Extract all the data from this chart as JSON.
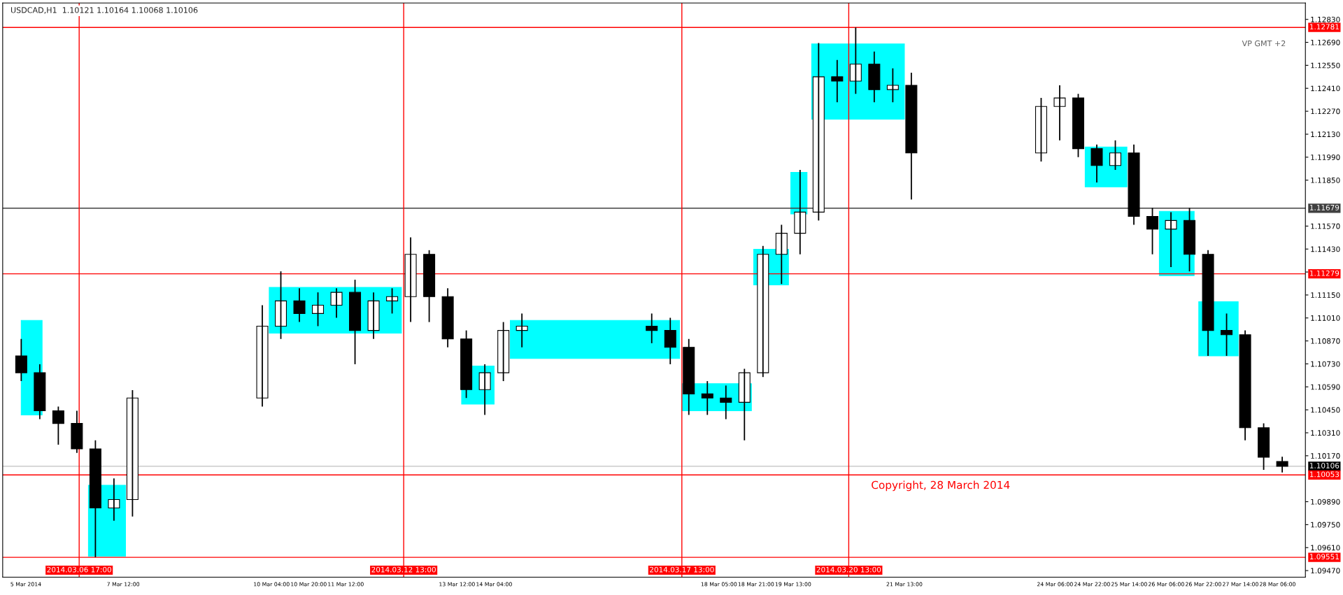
{
  "chart_data": {
    "type": "candlestick",
    "title": "USDCAD,H1  1.10121 1.10164 1.10068 1.10106",
    "color": "#000000",
    "x": [
      "2014-03-05T16:00",
      "2014-03-06T00:00",
      "2014-03-06T08:00",
      "2014-03-06T16:00",
      "2014-03-07T00:00",
      "2014-03-07T08:00",
      "2014-03-07T16:00",
      "2014-03-10T00:00",
      "2014-03-10T08:00",
      "2014-03-10T16:00",
      "2014-03-11T00:00",
      "2014-03-11T08:00",
      "2014-03-11T16:00",
      "2014-03-12T00:00",
      "2014-03-12T08:00",
      "2014-03-12T16:00",
      "2014-03-13T00:00",
      "2014-03-13T08:00",
      "2014-03-13T16:00",
      "2014-03-14T00:00",
      "2014-03-14T08:00",
      "2014-03-14T16:00",
      "2014-03-17T00:00",
      "2014-03-17T08:00",
      "2014-03-17T16:00",
      "2014-03-18T00:00",
      "2014-03-18T08:00",
      "2014-03-18T16:00",
      "2014-03-19T00:00",
      "2014-03-19T08:00",
      "2014-03-19T16:00",
      "2014-03-20T00:00",
      "2014-03-20T08:00",
      "2014-03-20T16:00",
      "2014-03-21T00:00",
      "2014-03-21T08:00",
      "2014-03-21T16:00",
      "2014-03-24T00:00",
      "2014-03-24T08:00",
      "2014-03-24T16:00",
      "2014-03-25T00:00",
      "2014-03-25T08:00",
      "2014-03-25T16:00",
      "2014-03-26T00:00",
      "2014-03-26T08:00",
      "2014-03-26T16:00",
      "2014-03-27T00:00",
      "2014-03-27T08:00",
      "2014-03-27T16:00",
      "2014-03-28T00:00",
      "2014-03-28T08:00"
    ],
    "ohlc": [
      [
        1.10779,
        1.10882,
        1.10625,
        1.10676
      ],
      [
        1.10676,
        1.10728,
        1.10393,
        1.10444
      ],
      [
        1.10444,
        1.1047,
        1.10238,
        1.10367
      ],
      [
        1.10367,
        1.10444,
        1.10187,
        1.10212
      ],
      [
        1.10212,
        1.10264,
        1.09551,
        1.09852
      ],
      [
        1.09852,
        1.10032,
        1.09774,
        1.09903
      ],
      [
        1.09903,
        1.1057,
        1.098,
        1.10522
      ],
      [
        1.10522,
        1.11088,
        1.1047,
        1.1096
      ],
      [
        1.1096,
        1.11294,
        1.10882,
        1.11114
      ],
      [
        1.11114,
        1.11191,
        1.10985,
        1.11037
      ],
      [
        1.11037,
        1.11166,
        1.1096,
        1.11088
      ],
      [
        1.11088,
        1.11191,
        1.11011,
        1.11166
      ],
      [
        1.11166,
        1.11243,
        1.10728,
        1.10934
      ],
      [
        1.10934,
        1.11166,
        1.10882,
        1.11114
      ],
      [
        1.11114,
        1.11191,
        1.11037,
        1.1114
      ],
      [
        1.1114,
        1.11501,
        1.10985,
        1.11398
      ],
      [
        1.11398,
        1.11423,
        1.10985,
        1.1114
      ],
      [
        1.1114,
        1.11191,
        1.10831,
        1.10882
      ],
      [
        1.10882,
        1.10934,
        1.10522,
        1.10573
      ],
      [
        1.10573,
        1.10728,
        1.10419,
        1.10676
      ],
      [
        1.10676,
        1.10985,
        1.10625,
        1.10934
      ],
      [
        1.10934,
        1.11037,
        1.10831,
        1.1096
      ],
      [
        1.1096,
        1.11037,
        1.10856,
        1.10934
      ],
      [
        1.10934,
        1.11011,
        1.10728,
        1.10831
      ],
      [
        1.10831,
        1.10882,
        1.10419,
        1.10547
      ],
      [
        1.10547,
        1.10625,
        1.10419,
        1.10522
      ],
      [
        1.10522,
        1.10598,
        1.10393,
        1.10496
      ],
      [
        1.10496,
        1.107,
        1.10264,
        1.10676
      ],
      [
        1.10676,
        1.11449,
        1.1065,
        1.11398
      ],
      [
        1.11398,
        1.11578,
        1.11217,
        1.11526
      ],
      [
        1.11526,
        1.11913,
        1.11398,
        1.11655
      ],
      [
        1.11655,
        1.12686,
        1.11604,
        1.1248
      ],
      [
        1.1248,
        1.12583,
        1.12325,
        1.12454
      ],
      [
        1.12454,
        1.12781,
        1.12376,
        1.12557
      ],
      [
        1.12557,
        1.12634,
        1.12325,
        1.12402
      ],
      [
        1.12402,
        1.12531,
        1.12325,
        1.12428
      ],
      [
        1.12428,
        1.12505,
        1.11732,
        1.12016
      ],
      [
        1.12016,
        1.12351,
        1.11964,
        1.12299
      ],
      [
        1.12299,
        1.12428,
        1.12093,
        1.12351
      ],
      [
        1.12351,
        1.12376,
        1.1199,
        1.12042
      ],
      [
        1.12042,
        1.12067,
        1.11836,
        1.11939
      ],
      [
        1.11939,
        1.12093,
        1.11913,
        1.12016
      ],
      [
        1.12016,
        1.12067,
        1.11578,
        1.11629
      ],
      [
        1.11629,
        1.11681,
        1.11398,
        1.11552
      ],
      [
        1.11552,
        1.11655,
        1.1132,
        1.11604
      ],
      [
        1.11604,
        1.11681,
        1.11294,
        1.11398
      ],
      [
        1.11398,
        1.11423,
        1.10779,
        1.10934
      ],
      [
        1.10934,
        1.11037,
        1.10779,
        1.10908
      ],
      [
        1.10908,
        1.10934,
        1.10264,
        1.10341
      ],
      [
        1.10341,
        1.10367,
        1.10084,
        1.10161
      ],
      [
        1.10135,
        1.10164,
        1.10068,
        1.10106
      ]
    ],
    "series": [
      {
        "type": "area",
        "color": "#00ffff",
        "x": [
          "2014-03-05T16:00",
          "2014-03-05T16:00",
          "2014-03-06T01:00",
          "2014-03-06T01:00"
        ],
        "values": [
          1.10419,
          1.10995,
          1.10995,
          1.10419
        ]
      },
      {
        "type": "area",
        "color": "#00ffff",
        "x": [
          "2014-03-06T21:00",
          "2014-03-06T21:00",
          "2014-03-07T13:00",
          "2014-03-07T13:00"
        ],
        "values": [
          1.09558,
          1.0999,
          1.0999,
          1.09558
        ]
      },
      {
        "type": "area",
        "color": "#00ffff",
        "x": [
          "2014-03-10T03:00",
          "2014-03-10T03:00",
          "2014-03-12T12:00",
          "2014-03-12T12:00"
        ],
        "values": [
          1.10918,
          1.11196,
          1.11196,
          1.10918
        ]
      },
      {
        "type": "area",
        "color": "#00ffff",
        "x": [
          "2014-03-13T14:00",
          "2014-03-13T14:00",
          "2014-03-14T04:00",
          "2014-03-14T04:00"
        ],
        "values": [
          1.10485,
          1.10717,
          1.10717,
          1.10485
        ]
      },
      {
        "type": "area",
        "color": "#00ffff",
        "x": [
          "2014-03-14T11:00",
          "2014-03-14T11:00",
          "2014-03-17T12:00",
          "2014-03-17T12:00"
        ],
        "values": [
          1.10763,
          1.10995,
          1.10995,
          1.10763
        ]
      },
      {
        "type": "area",
        "color": "#00ffff",
        "x": [
          "2014-03-17T13:00",
          "2014-03-17T13:00",
          "2014-03-18T19:00",
          "2014-03-18T19:00"
        ],
        "values": [
          1.10444,
          1.10609,
          1.10609,
          1.10444
        ]
      },
      {
        "type": "area",
        "color": "#00ffff",
        "x": [
          "2014-03-18T20:00",
          "2014-03-18T20:00",
          "2014-03-19T11:00",
          "2014-03-19T11:00"
        ],
        "values": [
          1.11212,
          1.11428,
          1.11428,
          1.11212
        ]
      },
      {
        "type": "area",
        "color": "#00ffff",
        "x": [
          "2014-03-19T12:00",
          "2014-03-19T12:00",
          "2014-03-19T19:00",
          "2014-03-19T19:00"
        ],
        "values": [
          1.11644,
          1.11897,
          1.11897,
          1.11644
        ]
      },
      {
        "type": "area",
        "color": "#00ffff",
        "x": [
          "2014-03-19T21:00",
          "2014-03-19T21:00",
          "2014-03-21T13:00",
          "2014-03-21T13:00"
        ],
        "values": [
          1.12222,
          1.1268,
          1.1268,
          1.12222
        ]
      },
      {
        "type": "area",
        "color": "#00ffff",
        "x": [
          "2014-03-24T19:00",
          "2014-03-24T19:00",
          "2014-03-25T13:00",
          "2014-03-25T13:00"
        ],
        "values": [
          1.11809,
          1.12052,
          1.12052,
          1.11809
        ]
      },
      {
        "type": "area",
        "color": "#00ffff",
        "x": [
          "2014-03-26T03:00",
          "2014-03-26T03:00",
          "2014-03-26T18:00",
          "2014-03-26T18:00"
        ],
        "values": [
          1.11268,
          1.1166,
          1.1166,
          1.11268
        ]
      },
      {
        "type": "area",
        "color": "#00ffff",
        "x": [
          "2014-03-26T20:00",
          "2014-03-26T20:00",
          "2014-03-27T13:00",
          "2014-03-27T13:00"
        ],
        "values": [
          1.10779,
          1.11109,
          1.11109,
          1.10779
        ]
      }
    ],
    "xlim": [
      "2014-03-05T08:00",
      "2014-03-28T18:00"
    ],
    "xticks": [
      {
        "value": "2014-03-05T18:00",
        "label": "5 Mar 2014"
      },
      {
        "value": "2014-03-07T12:00",
        "label": "7 Mar 12:00"
      },
      {
        "value": "2014-03-10T04:00",
        "label": "10 Mar 04:00"
      },
      {
        "value": "2014-03-10T20:00",
        "label": "10 Mar 20:00"
      },
      {
        "value": "2014-03-11T12:00",
        "label": "11 Mar 12:00"
      },
      {
        "value": "2014-03-13T12:00",
        "label": "13 Mar 12:00"
      },
      {
        "value": "2014-03-14T04:00",
        "label": "14 Mar 04:00"
      },
      {
        "value": "2014-03-18T05:00",
        "label": "18 Mar 05:00"
      },
      {
        "value": "2014-03-18T21:00",
        "label": "18 Mar 21:00"
      },
      {
        "value": "2014-03-19T13:00",
        "label": "19 Mar 13:00"
      },
      {
        "value": "2014-03-21T13:00",
        "label": "21 Mar 13:00"
      },
      {
        "value": "2014-03-24T06:00",
        "label": "24 Mar 06:00"
      },
      {
        "value": "2014-03-24T22:00",
        "label": "24 Mar 22:00"
      },
      {
        "value": "2014-03-25T14:00",
        "label": "25 Mar 14:00"
      },
      {
        "value": "2014-03-26T06:00",
        "label": "26 Mar 06:00"
      },
      {
        "value": "2014-03-26T22:00",
        "label": "26 Mar 22:00"
      },
      {
        "value": "2014-03-27T14:00",
        "label": "27 Mar 14:00"
      },
      {
        "value": "2014-03-28T06:00",
        "label": "28 Mar 06:00"
      }
    ],
    "ylim": [
      1.0943,
      1.1293
    ],
    "yticks": [
      {
        "value": 1.0947,
        "label": "1.09470"
      },
      {
        "value": 1.0961,
        "label": "1.09610"
      },
      {
        "value": 1.0975,
        "label": "1.09750"
      },
      {
        "value": 1.0989,
        "label": "1.09890"
      },
      {
        "value": 1.1017,
        "label": "1.10170"
      },
      {
        "value": 1.1031,
        "label": "1.10310"
      },
      {
        "value": 1.1045,
        "label": "1.10450"
      },
      {
        "value": 1.1059,
        "label": "1.10590"
      },
      {
        "value": 1.1073,
        "label": "1.10730"
      },
      {
        "value": 1.1087,
        "label": "1.10870"
      },
      {
        "value": 1.1101,
        "label": "1.11010"
      },
      {
        "value": 1.1115,
        "label": "1.11150"
      },
      {
        "value": 1.1129,
        "label": null
      },
      {
        "value": 1.1143,
        "label": "1.11430"
      },
      {
        "value": 1.1157,
        "label": "1.11570"
      },
      {
        "value": 1.1185,
        "label": "1.11850"
      },
      {
        "value": 1.1199,
        "label": "1.11990"
      },
      {
        "value": 1.1213,
        "label": "1.12130"
      },
      {
        "value": 1.1227,
        "label": "1.12270"
      },
      {
        "value": 1.1241,
        "label": "1.12410"
      },
      {
        "value": 1.1255,
        "label": "1.12550"
      },
      {
        "value": 1.1269,
        "label": "1.12690"
      },
      {
        "value": 1.1283,
        "label": "1.12830"
      }
    ],
    "ref_lines": [
      {
        "axis": "y",
        "value": 1.12781,
        "label": "1.12781",
        "color": "#ff0000"
      },
      {
        "axis": "y",
        "value": 1.11679,
        "label": "1.11679",
        "color": "#404040"
      },
      {
        "axis": "y",
        "value": 1.11279,
        "label": "1.11279",
        "color": "#ff0000"
      },
      {
        "axis": "y",
        "value": 1.10106,
        "label": "1.10106",
        "color": "#c0c0c0"
      },
      {
        "axis": "y",
        "value": 1.10053,
        "label": "1.10053",
        "color": "#ff0000"
      },
      {
        "axis": "y",
        "value": 1.09551,
        "label": "1.09551",
        "color": "#ff0000"
      },
      {
        "axis": "x",
        "value": "2014-03-06T17:00",
        "label": "2014.03.06 17:00",
        "color": "#ff0000"
      },
      {
        "axis": "x",
        "value": "2014-03-12T13:00",
        "label": "2014.03.12 13:00",
        "color": "#ff0000"
      },
      {
        "axis": "x",
        "value": "2014-03-17T13:00",
        "label": "2014.03.17 13:00",
        "color": "#ff0000"
      },
      {
        "axis": "x",
        "value": "2014-03-20T13:00",
        "label": "2014.03.20 13:00",
        "color": "#ff0000"
      }
    ],
    "annotations": [
      "VP GMT +2",
      "Copyright, 28 March 2014"
    ]
  }
}
